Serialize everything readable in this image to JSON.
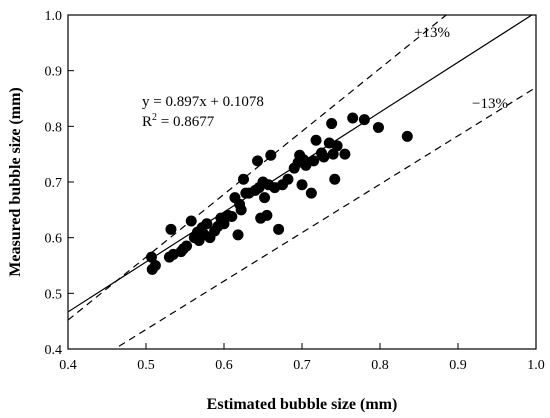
{
  "chart_data": {
    "type": "scatter",
    "xlabel": "Estimated bubble size (mm)",
    "ylabel": "Measured bubble size (mm)",
    "xlim": [
      0.4,
      1.0
    ],
    "ylim": [
      0.4,
      1.0
    ],
    "x_ticks": [
      "0.4",
      "0.5",
      "0.6",
      "0.7",
      "0.8",
      "0.9",
      "1.0"
    ],
    "y_ticks": [
      "0.4",
      "0.5",
      "0.6",
      "0.7",
      "0.8",
      "0.9",
      "1.0"
    ],
    "grid": false,
    "fit_line": {
      "slope": 0.897,
      "intercept": 0.1078,
      "style": "solid"
    },
    "bound_lines": [
      {
        "label": "+13%",
        "factor": 1.13,
        "style": "dashed"
      },
      {
        "label": "−13%",
        "factor": 0.87,
        "style": "dashed"
      }
    ],
    "equation": "y = 0.897x + 0.1078",
    "r2_text": "R",
    "r2_sup": "2",
    "r2_value": " = 0.8677",
    "points": [
      {
        "x": 0.507,
        "y": 0.565
      },
      {
        "x": 0.508,
        "y": 0.543
      },
      {
        "x": 0.512,
        "y": 0.55
      },
      {
        "x": 0.53,
        "y": 0.565
      },
      {
        "x": 0.532,
        "y": 0.615
      },
      {
        "x": 0.535,
        "y": 0.57
      },
      {
        "x": 0.545,
        "y": 0.575
      },
      {
        "x": 0.548,
        "y": 0.58
      },
      {
        "x": 0.552,
        "y": 0.585
      },
      {
        "x": 0.558,
        "y": 0.63
      },
      {
        "x": 0.562,
        "y": 0.6
      },
      {
        "x": 0.566,
        "y": 0.61
      },
      {
        "x": 0.568,
        "y": 0.595
      },
      {
        "x": 0.572,
        "y": 0.618
      },
      {
        "x": 0.575,
        "y": 0.605
      },
      {
        "x": 0.578,
        "y": 0.625
      },
      {
        "x": 0.582,
        "y": 0.6
      },
      {
        "x": 0.588,
        "y": 0.612
      },
      {
        "x": 0.592,
        "y": 0.62
      },
      {
        "x": 0.596,
        "y": 0.635
      },
      {
        "x": 0.6,
        "y": 0.625
      },
      {
        "x": 0.605,
        "y": 0.64
      },
      {
        "x": 0.61,
        "y": 0.638
      },
      {
        "x": 0.614,
        "y": 0.672
      },
      {
        "x": 0.618,
        "y": 0.605
      },
      {
        "x": 0.62,
        "y": 0.66
      },
      {
        "x": 0.622,
        "y": 0.65
      },
      {
        "x": 0.625,
        "y": 0.705
      },
      {
        "x": 0.628,
        "y": 0.68
      },
      {
        "x": 0.632,
        "y": 0.68
      },
      {
        "x": 0.64,
        "y": 0.685
      },
      {
        "x": 0.643,
        "y": 0.738
      },
      {
        "x": 0.645,
        "y": 0.69
      },
      {
        "x": 0.647,
        "y": 0.635
      },
      {
        "x": 0.65,
        "y": 0.7
      },
      {
        "x": 0.652,
        "y": 0.672
      },
      {
        "x": 0.655,
        "y": 0.64
      },
      {
        "x": 0.657,
        "y": 0.695
      },
      {
        "x": 0.66,
        "y": 0.748
      },
      {
        "x": 0.665,
        "y": 0.69
      },
      {
        "x": 0.67,
        "y": 0.615
      },
      {
        "x": 0.675,
        "y": 0.695
      },
      {
        "x": 0.682,
        "y": 0.705
      },
      {
        "x": 0.69,
        "y": 0.725
      },
      {
        "x": 0.695,
        "y": 0.735
      },
      {
        "x": 0.697,
        "y": 0.748
      },
      {
        "x": 0.7,
        "y": 0.695
      },
      {
        "x": 0.702,
        "y": 0.74
      },
      {
        "x": 0.705,
        "y": 0.73
      },
      {
        "x": 0.712,
        "y": 0.68
      },
      {
        "x": 0.715,
        "y": 0.738
      },
      {
        "x": 0.718,
        "y": 0.775
      },
      {
        "x": 0.725,
        "y": 0.752
      },
      {
        "x": 0.728,
        "y": 0.745
      },
      {
        "x": 0.735,
        "y": 0.77
      },
      {
        "x": 0.738,
        "y": 0.805
      },
      {
        "x": 0.74,
        "y": 0.75
      },
      {
        "x": 0.742,
        "y": 0.705
      },
      {
        "x": 0.745,
        "y": 0.765
      },
      {
        "x": 0.755,
        "y": 0.75
      },
      {
        "x": 0.765,
        "y": 0.815
      },
      {
        "x": 0.78,
        "y": 0.812
      },
      {
        "x": 0.798,
        "y": 0.798
      },
      {
        "x": 0.835,
        "y": 0.782
      }
    ]
  }
}
